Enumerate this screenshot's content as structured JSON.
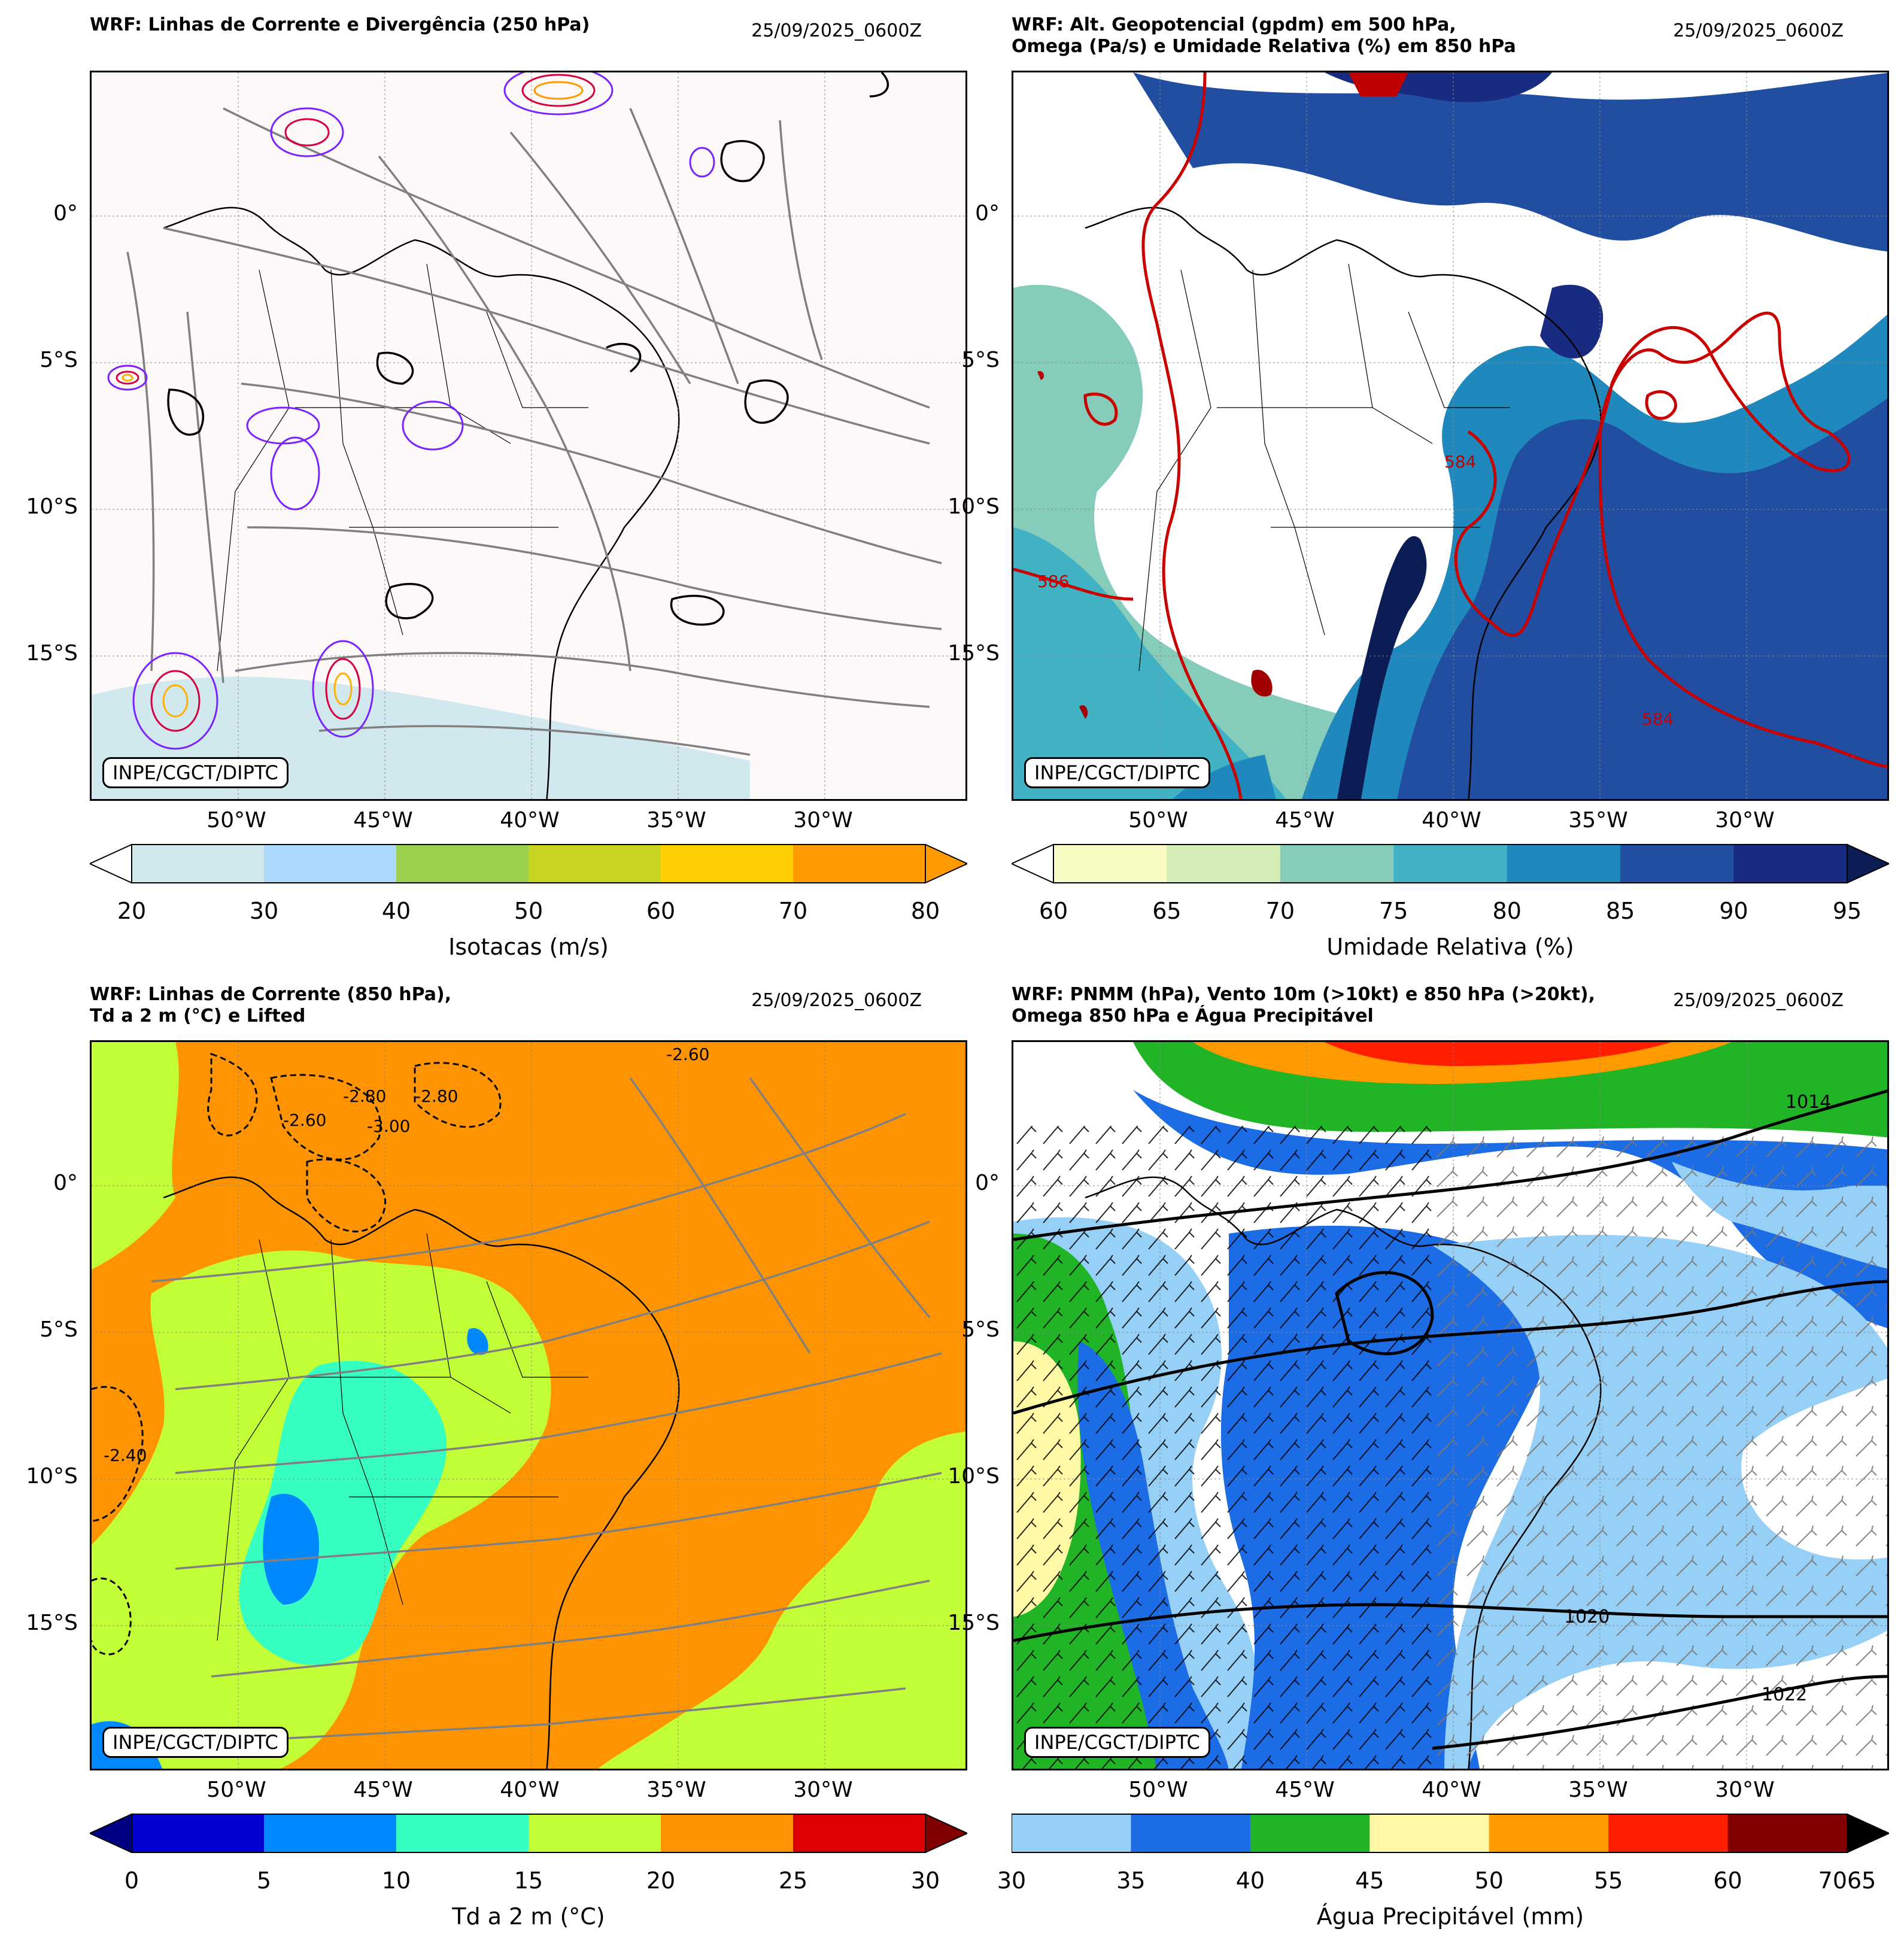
{
  "panels": [
    {
      "id": "p1",
      "title": "WRF: Linhas de Corrente e Divergência (250 hPa)",
      "date": "25/09/2025_0600Z",
      "background": "#fcf9f8",
      "colorbar": {
        "label": "Isotacas (m/s)",
        "ticks": [
          "20",
          "30",
          "40",
          "50",
          "60",
          "70",
          "80"
        ],
        "colors": [
          "#d1e8ee",
          "#abd9fb",
          "#9ad04c",
          "#c6d420",
          "#ffce00",
          "#ff9a00"
        ],
        "extend_low": "#ffffff",
        "extend_high": "#ff9a00"
      },
      "contour_labels": []
    },
    {
      "id": "p2",
      "title": "WRF: Alt. Geopotencial (gpdm) em 500 hPa,\nOmega (Pa/s) e Umidade Relativa (%) em 850 hPa",
      "date": "25/09/2025_0600Z",
      "background": "#ffffff",
      "colorbar": {
        "label": "Umidade Relativa (%)",
        "ticks": [
          "60",
          "65",
          "70",
          "75",
          "80",
          "85",
          "90",
          "95"
        ],
        "colors": [
          "#f8fcc4",
          "#d2eeb4",
          "#86ccbb",
          "#40b2c4",
          "#1f88bc",
          "#214ea0",
          "#182b80"
        ],
        "extend_low": "#ffffff",
        "extend_high": "#0c1c55"
      },
      "contour_labels": [
        "584",
        "586",
        "584"
      ]
    },
    {
      "id": "p3",
      "title": "WRF: Linhas de Corrente (850 hPa),\nTd a 2 m (°C) e Lifted",
      "date": "25/09/2025_0600Z",
      "background": "#ff9400",
      "colorbar": {
        "label": "Td a 2 m (°C)",
        "ticks": [
          "0",
          "5",
          "10",
          "15",
          "20",
          "25",
          "30"
        ],
        "colors": [
          "#0000d2",
          "#0088ff",
          "#36ffc2",
          "#c3ff36",
          "#ff9400",
          "#dd0000"
        ],
        "extend_low": "#000082",
        "extend_high": "#800000"
      },
      "contour_labels": [
        "-2.60",
        "-2.80",
        "-3.00",
        "-2.80",
        "-2.60",
        "-2.40"
      ]
    },
    {
      "id": "p4",
      "title": "WRF: PNMM (hPa), Vento 10m (>10kt) e 850 hPa (>20kt),\nOmega 850 hPa e Água Precipitável",
      "date": "25/09/2025_0600Z",
      "background": "#ffffff",
      "colorbar": {
        "label": "Água Precipitável (mm)",
        "ticks": [
          "30",
          "35",
          "40",
          "45",
          "50",
          "55",
          "60",
          "7065"
        ],
        "colors": [
          "#97d0f6",
          "#1c6ce6",
          "#21b427",
          "#fff9a6",
          "#ff9a00",
          "#ff1e00",
          "#820000"
        ],
        "extend_low": "",
        "extend_high": "#000000"
      },
      "contour_labels": [
        "1014",
        "1020",
        "1022"
      ]
    }
  ],
  "lat_labels": [
    "0°",
    "5°S",
    "10°S",
    "15°S"
  ],
  "lon_labels": [
    "50°W",
    "45°W",
    "40°W",
    "35°W",
    "30°W"
  ],
  "credit": "INPE/CGCT/DIPTC"
}
